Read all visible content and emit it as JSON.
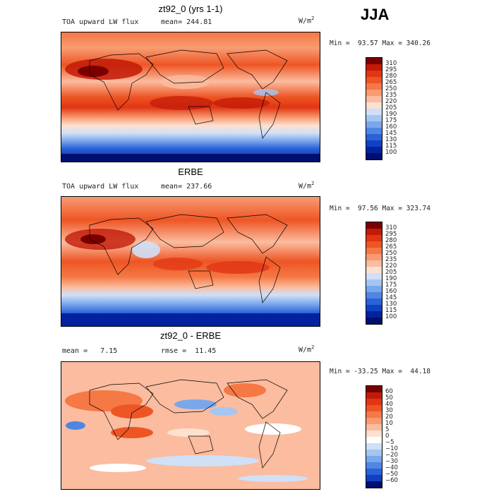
{
  "season": "JJA",
  "units": {
    "base": "W/m",
    "sup": "2"
  },
  "panels": [
    {
      "id": "model",
      "title": "zt92_0 (yrs 1-1)",
      "left_label": "TOA upward LW flux",
      "stat_label": "mean= 244.81",
      "minmax": "Min =  93.57 Max = 340.26",
      "levels": [
        "310",
        "295",
        "280",
        "265",
        "250",
        "235",
        "220",
        "205",
        "190",
        "175",
        "160",
        "145",
        "130",
        "115",
        "100"
      ],
      "colors": [
        "#7a0000",
        "#c21a08",
        "#e13513",
        "#ee5524",
        "#f57845",
        "#f99b72",
        "#fbbc9f",
        "#fde0d0",
        "#cfe0f7",
        "#a5c6f2",
        "#7aa7ec",
        "#4f86e3",
        "#2a62d7",
        "#1041c2",
        "#03229e",
        "#000e70"
      ]
    },
    {
      "id": "obs",
      "title": "ERBE",
      "left_label": "TOA upward LW flux",
      "stat_label": "mean= 237.66",
      "minmax": "Min =  97.56 Max = 323.74",
      "levels": [
        "310",
        "295",
        "280",
        "265",
        "250",
        "235",
        "220",
        "205",
        "190",
        "175",
        "160",
        "145",
        "130",
        "115",
        "100"
      ],
      "colors": [
        "#7a0000",
        "#c21a08",
        "#e13513",
        "#ee5524",
        "#f57845",
        "#f99b72",
        "#fbbc9f",
        "#fde0d0",
        "#cfe0f7",
        "#a5c6f2",
        "#7aa7ec",
        "#4f86e3",
        "#2a62d7",
        "#1041c2",
        "#03229e",
        "#000e70"
      ]
    },
    {
      "id": "diff",
      "title": "zt92_0 - ERBE",
      "left_label": "mean =   7.15",
      "stat_label": "rmse =  11.45",
      "minmax": "Min = -33.25 Max =  44.18",
      "levels": [
        "60",
        "50",
        "40",
        "30",
        "20",
        "10",
        "5",
        "0",
        "−5",
        "−10",
        "−20",
        "−30",
        "−40",
        "−50",
        "−60"
      ],
      "colors": [
        "#7a0000",
        "#c21a08",
        "#e13513",
        "#ee5524",
        "#f57845",
        "#f99b72",
        "#fbbc9f",
        "#fde0d0",
        "#ffffff",
        "#cfe0f7",
        "#a5c6f2",
        "#7aa7ec",
        "#4f86e3",
        "#2a62d7",
        "#1041c2",
        "#000e70"
      ]
    }
  ]
}
